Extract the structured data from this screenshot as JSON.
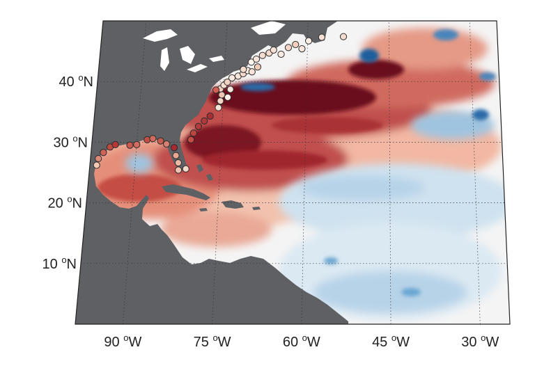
{
  "map": {
    "projection": "conic",
    "region": "North Atlantic Ocean",
    "lon_range": [
      -98,
      -25
    ],
    "lat_range": [
      0,
      50
    ],
    "grid": "dotted",
    "colors": {
      "land": "#5e6064",
      "lakes": "#ffffff",
      "strong_warm": "#6a0c1f",
      "warm": "#c0504d",
      "light_warm": "#f2b8a3",
      "neutral": "#f4f4f4",
      "light_cool": "#cfe2ef",
      "cool": "#6aa6d1",
      "strong_cool": "#1f5e9c",
      "marker_stroke": "#2b2b2b"
    },
    "lat_labels": [
      {
        "deg": "40",
        "unit": "o",
        "hem": "N",
        "lat": 40
      },
      {
        "deg": "30",
        "unit": "o",
        "hem": "N",
        "lat": 30
      },
      {
        "deg": "20",
        "unit": "o",
        "hem": "N",
        "lat": 20
      },
      {
        "deg": "10",
        "unit": "o",
        "hem": "N",
        "lat": 10
      }
    ],
    "lon_labels": [
      {
        "deg": "90",
        "unit": "o",
        "hem": "W",
        "lon": -90
      },
      {
        "deg": "75",
        "unit": "o",
        "hem": "W",
        "lon": -75
      },
      {
        "deg": "60",
        "unit": "o",
        "hem": "W",
        "lon": -60
      },
      {
        "deg": "45",
        "unit": "o",
        "hem": "W",
        "lon": -45
      },
      {
        "deg": "30",
        "unit": "o",
        "hem": "W",
        "lon": -30
      }
    ],
    "coastal_stations": [
      {
        "lon": -96.8,
        "lat": 26.2,
        "shade": "#f4c8b4"
      },
      {
        "lon": -96.6,
        "lat": 27.3,
        "shade": "#d98a78"
      },
      {
        "lon": -95.8,
        "lat": 28.3,
        "shade": "#d06355"
      },
      {
        "lon": -94.7,
        "lat": 29.2,
        "shade": "#c04b40"
      },
      {
        "lon": -93.8,
        "lat": 29.6,
        "shade": "#b83838"
      },
      {
        "lon": -91.2,
        "lat": 29.5,
        "shade": "#c85a50"
      },
      {
        "lon": -90.0,
        "lat": 29.6,
        "shade": "#d26c5e"
      },
      {
        "lon": -88.2,
        "lat": 30.4,
        "shade": "#c44e44"
      },
      {
        "lon": -87.2,
        "lat": 30.6,
        "shade": "#d06a5c"
      },
      {
        "lon": -85.8,
        "lat": 30.2,
        "shade": "#c95c50"
      },
      {
        "lon": -84.7,
        "lat": 29.7,
        "shade": "#d77f6e"
      },
      {
        "lon": -83.3,
        "lat": 29.1,
        "shade": "#a82a2e"
      },
      {
        "lon": -82.9,
        "lat": 27.8,
        "shade": "#e8a58f"
      },
      {
        "lon": -82.4,
        "lat": 26.6,
        "shade": "#eeb9a4"
      },
      {
        "lon": -82.3,
        "lat": 25.4,
        "shade": "#f1c3ae"
      },
      {
        "lon": -81.0,
        "lat": 25.6,
        "shade": "#f6dac9"
      },
      {
        "lon": -80.4,
        "lat": 30.4,
        "shade": "#c64c44"
      },
      {
        "lon": -80.0,
        "lat": 31.5,
        "shade": "#bf4541"
      },
      {
        "lon": -79.2,
        "lat": 32.6,
        "shade": "#b23a3a"
      },
      {
        "lon": -78.2,
        "lat": 33.5,
        "shade": "#b0393a"
      },
      {
        "lon": -77.2,
        "lat": 34.3,
        "shade": "#a83034"
      },
      {
        "lon": -75.8,
        "lat": 35.7,
        "shade": "#f7e4d8"
      },
      {
        "lon": -75.5,
        "lat": 36.8,
        "shade": "#f4d7c8"
      },
      {
        "lon": -75.3,
        "lat": 37.8,
        "shade": "#efc4b3"
      },
      {
        "lon": -75.6,
        "lat": 38.8,
        "shade": "#f3d0c0"
      },
      {
        "lon": -76.4,
        "lat": 38.6,
        "shade": "#d25f52"
      },
      {
        "lon": -75.0,
        "lat": 39.4,
        "shade": "#f6e0d3"
      },
      {
        "lon": -74.4,
        "lat": 39.9,
        "shade": "#f4d2c3"
      },
      {
        "lon": -73.6,
        "lat": 40.6,
        "shade": "#fae9df"
      },
      {
        "lon": -72.5,
        "lat": 40.9,
        "shade": "#f9e4d9"
      },
      {
        "lon": -71.6,
        "lat": 41.3,
        "shade": "#f7dccd"
      },
      {
        "lon": -70.8,
        "lat": 41.8,
        "shade": "#fbeee6"
      },
      {
        "lon": -70.0,
        "lat": 41.6,
        "shade": "#f8e3d6"
      },
      {
        "lon": -74.2,
        "lat": 37.4,
        "shade": "#fbefe8"
      },
      {
        "lon": -73.8,
        "lat": 38.7,
        "shade": "#f9e6dc"
      },
      {
        "lon": -70.2,
        "lat": 43.2,
        "shade": "#fdf4ee"
      },
      {
        "lon": -69.3,
        "lat": 43.7,
        "shade": "#f9e5d9"
      },
      {
        "lon": -68.2,
        "lat": 44.3,
        "shade": "#f7ddcf"
      },
      {
        "lon": -67.0,
        "lat": 44.7,
        "shade": "#f6dbcc"
      },
      {
        "lon": -66.2,
        "lat": 45.2,
        "shade": "#f8e2d6"
      },
      {
        "lon": -64.8,
        "lat": 44.5,
        "shade": "#fbece3"
      },
      {
        "lon": -63.5,
        "lat": 45.6,
        "shade": "#f6d7c7"
      },
      {
        "lon": -62.2,
        "lat": 46.1,
        "shade": "#f4d0be"
      },
      {
        "lon": -61.0,
        "lat": 45.4,
        "shade": "#f9e6dc"
      },
      {
        "lon": -59.8,
        "lat": 46.7,
        "shade": "#fbeee6"
      },
      {
        "lon": -57.4,
        "lat": 47.3,
        "shade": "#f7e0d3"
      },
      {
        "lon": -53.4,
        "lat": 47.4,
        "shade": "#f6dccf"
      },
      {
        "lon": -69.0,
        "lat": 42.4,
        "shade": "#f3cbb9"
      },
      {
        "lon": -71.6,
        "lat": 42.0,
        "shade": "#f6dacd"
      }
    ]
  }
}
